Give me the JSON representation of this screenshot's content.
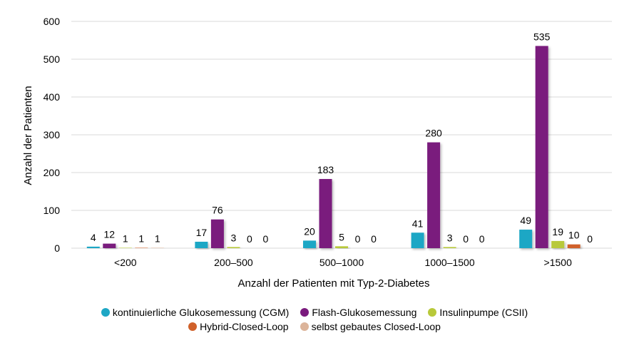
{
  "chart_data": {
    "type": "bar",
    "categories": [
      "<200",
      "200–500",
      "500–1000",
      "1000–1500",
      ">1500"
    ],
    "series": [
      {
        "name": "kontinuierliche Glukosemessung (CGM)",
        "color": "#1ea7c5",
        "values": [
          4,
          17,
          20,
          41,
          49
        ]
      },
      {
        "name": "Flash-Glukosemessung",
        "color": "#7a1a7d",
        "values": [
          12,
          76,
          183,
          280,
          535
        ]
      },
      {
        "name": "Insulinpumpe (CSII)",
        "color": "#b8c93a",
        "values": [
          1,
          3,
          5,
          3,
          19
        ]
      },
      {
        "name": "Hybrid-Closed-Loop",
        "color": "#d0612a",
        "values": [
          1,
          0,
          0,
          0,
          10
        ]
      },
      {
        "name": "selbst gebautes Closed-Loop",
        "color": "#dcb49a",
        "values": [
          1,
          0,
          0,
          0,
          0
        ]
      }
    ],
    "xlabel": "Anzahl der Patienten mit Typ-2-Diabetes",
    "ylabel": "Anzahl der Patienten",
    "ylim": [
      0,
      600
    ],
    "yticks": [
      0,
      100,
      200,
      300,
      400,
      500,
      600
    ],
    "grid": true,
    "legend_position": "bottom"
  }
}
